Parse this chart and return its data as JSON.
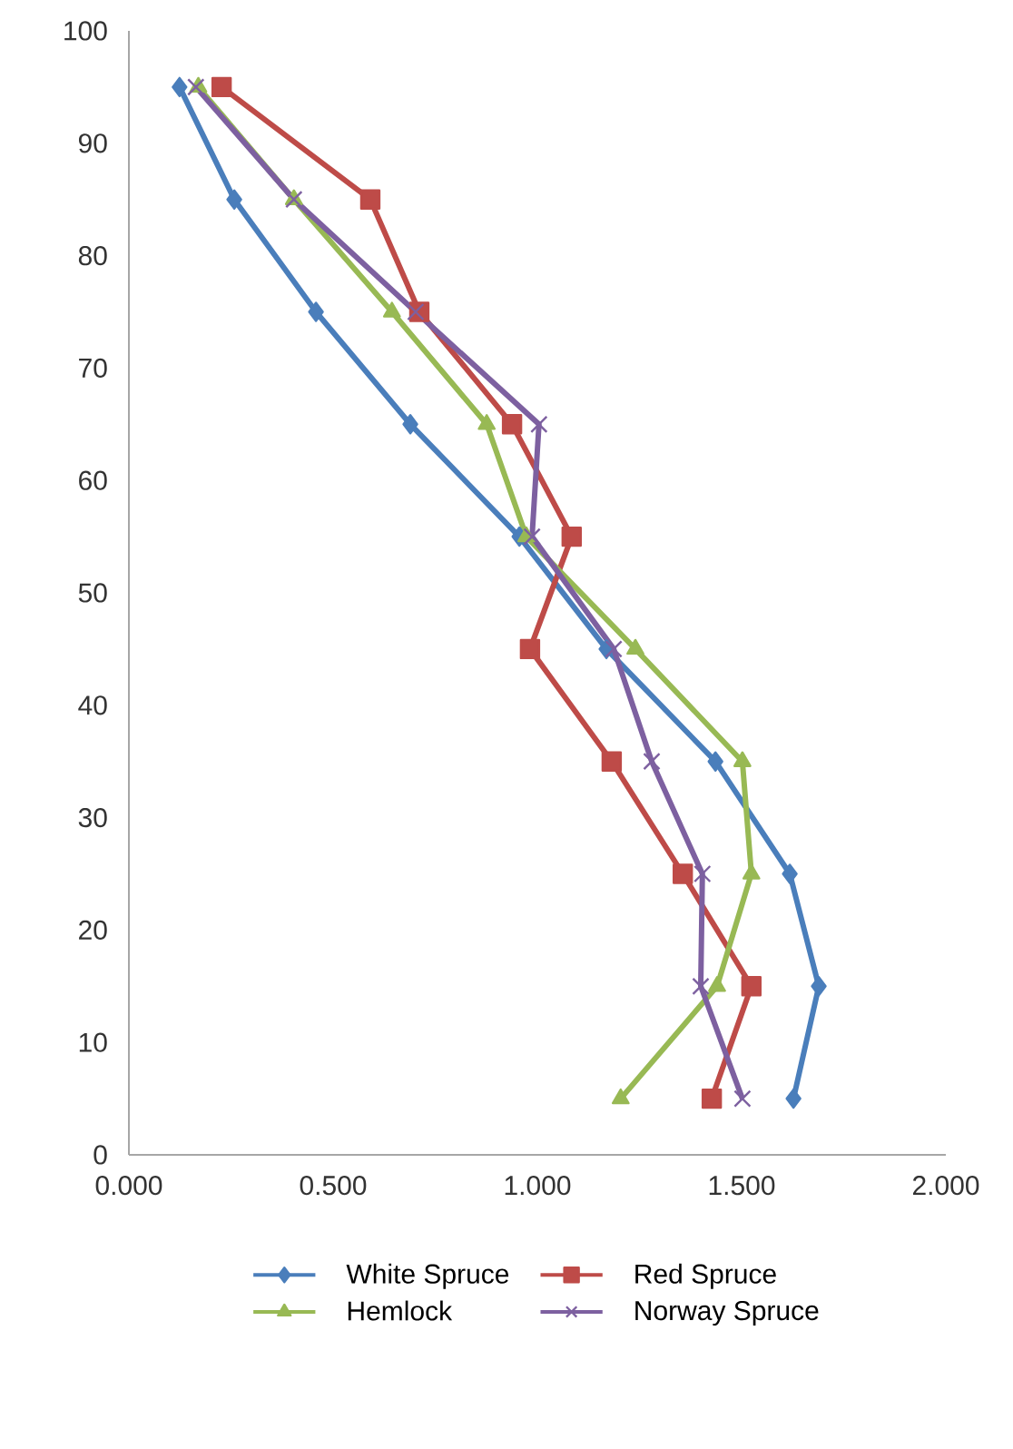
{
  "chart_data": {
    "type": "line",
    "xlim": [
      0,
      2
    ],
    "ylim": [
      0,
      100
    ],
    "xticks": [
      {
        "value": 0,
        "label": "0.000"
      },
      {
        "value": 0.5,
        "label": "0.500"
      },
      {
        "value": 1,
        "label": "1.000"
      },
      {
        "value": 1.5,
        "label": "1.500"
      },
      {
        "value": 2,
        "label": "2.000"
      }
    ],
    "yticks": [
      0,
      10,
      20,
      30,
      40,
      50,
      60,
      70,
      80,
      90,
      100
    ],
    "grid": false,
    "legend": "bottom",
    "line_style": "solid",
    "series": [
      {
        "name": "White Spruce",
        "color": "#4a7ebb",
        "marker": "diamond",
        "x": [
          0.124,
          0.258,
          0.458,
          0.689,
          0.956,
          1.169,
          1.436,
          1.618,
          1.689,
          1.627
        ],
        "values": [
          95,
          85,
          75,
          65,
          55,
          45,
          35,
          25,
          15,
          5
        ]
      },
      {
        "name": "Red Spruce",
        "color": "#be4b48",
        "marker": "square",
        "x": [
          0.227,
          0.591,
          0.711,
          0.938,
          1.084,
          0.982,
          1.182,
          1.356,
          1.524,
          1.427
        ],
        "values": [
          95,
          85,
          75,
          65,
          55,
          45,
          35,
          25,
          15,
          5
        ]
      },
      {
        "name": "Hemlock",
        "color": "#98b954",
        "marker": "triangle",
        "x": [
          0.17,
          0.404,
          0.644,
          0.876,
          0.973,
          1.24,
          1.502,
          1.524,
          1.44,
          1.204
        ],
        "values": [
          95,
          85,
          75,
          65,
          55,
          45,
          35,
          25,
          15,
          5
        ]
      },
      {
        "name": "Norway Spruce",
        "color": "#7d60a0",
        "marker": "cross",
        "x": [
          0.164,
          0.404,
          0.702,
          1.004,
          0.987,
          1.187,
          1.28,
          1.404,
          1.4,
          1.502
        ],
        "values": [
          95,
          85,
          75,
          65,
          55,
          45,
          35,
          25,
          15,
          5
        ]
      }
    ]
  }
}
